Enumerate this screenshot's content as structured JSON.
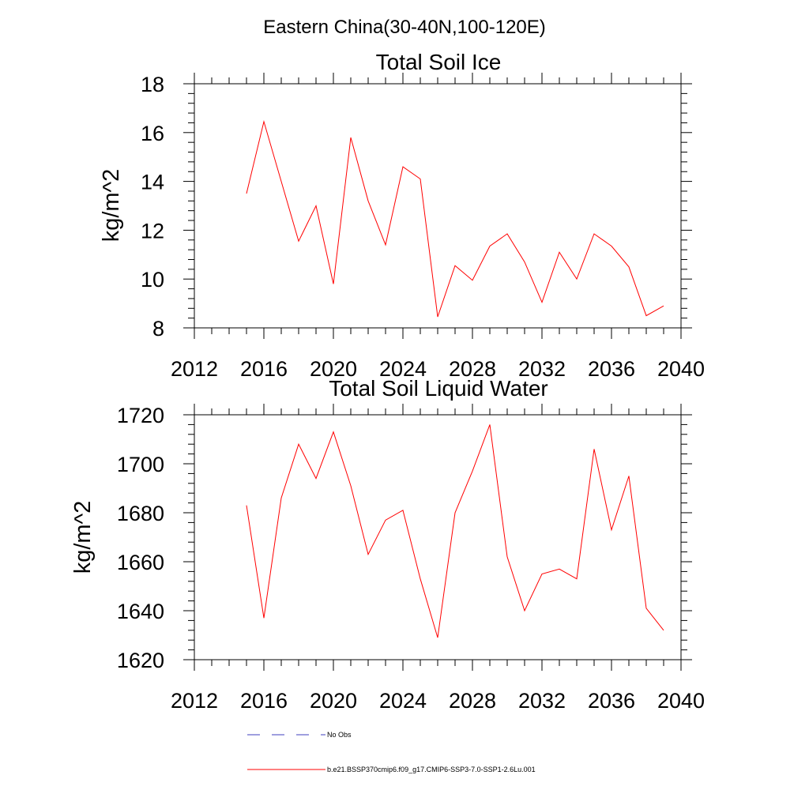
{
  "figure_title": "Eastern China(30-40N,100-120E)",
  "chart_data": [
    {
      "type": "line",
      "title": "Total Soil Ice",
      "xlabel": "",
      "ylabel": "kg/m^2",
      "xlim": [
        2012,
        2040
      ],
      "ylim": [
        8,
        18
      ],
      "xticks": [
        2012,
        2016,
        2020,
        2024,
        2028,
        2032,
        2036,
        2040
      ],
      "yticks": [
        8,
        10,
        12,
        14,
        16,
        18
      ],
      "x": [
        2015,
        2016,
        2017,
        2018,
        2019,
        2020,
        2021,
        2022,
        2023,
        2024,
        2025,
        2026,
        2027,
        2028,
        2029,
        2030,
        2031,
        2032,
        2033,
        2034,
        2035,
        2036,
        2037,
        2038,
        2039
      ],
      "series": [
        {
          "name": "b.e21.BSSP370cmip6.f09_g17.CMIP6-SSP3-7.0-SSP1-2.6Lu.001",
          "color": "#ff0000",
          "values": [
            13.5,
            16.45,
            14.0,
            11.55,
            13.0,
            9.8,
            15.8,
            13.2,
            11.4,
            14.6,
            14.1,
            8.45,
            10.55,
            9.95,
            11.35,
            11.85,
            10.7,
            9.05,
            11.1,
            10.0,
            11.85,
            11.35,
            10.5,
            8.5,
            8.9
          ]
        }
      ]
    },
    {
      "type": "line",
      "title": "Total Soil Liquid Water",
      "xlabel": "",
      "ylabel": "kg/m^2",
      "xlim": [
        2012,
        2040
      ],
      "ylim": [
        1620,
        1720
      ],
      "xticks": [
        2012,
        2016,
        2020,
        2024,
        2028,
        2032,
        2036,
        2040
      ],
      "yticks": [
        1620,
        1640,
        1660,
        1680,
        1700,
        1720
      ],
      "x": [
        2015,
        2016,
        2017,
        2018,
        2019,
        2020,
        2021,
        2022,
        2023,
        2024,
        2025,
        2026,
        2027,
        2028,
        2029,
        2030,
        2031,
        2032,
        2033,
        2034,
        2035,
        2036,
        2037,
        2038,
        2039
      ],
      "series": [
        {
          "name": "b.e21.BSSP370cmip6.f09_g17.CMIP6-SSP3-7.0-SSP1-2.6Lu.001",
          "color": "#ff0000",
          "values": [
            1683,
            1637,
            1686,
            1708,
            1694,
            1713,
            1691,
            1663,
            1677,
            1681,
            1653,
            1629,
            1680,
            1697,
            1716,
            1662,
            1640,
            1655,
            1657,
            1653,
            1706,
            1673,
            1695,
            1641,
            1632
          ]
        }
      ]
    }
  ],
  "legend": [
    {
      "label": "No Obs",
      "color": "#3f3fbf",
      "style": "dashed"
    },
    {
      "label": "b.e21.BSSP370cmip6.f09_g17.CMIP6-SSP3-7.0-SSP1-2.6Lu.001",
      "color": "#ff0000",
      "style": "solid"
    }
  ]
}
